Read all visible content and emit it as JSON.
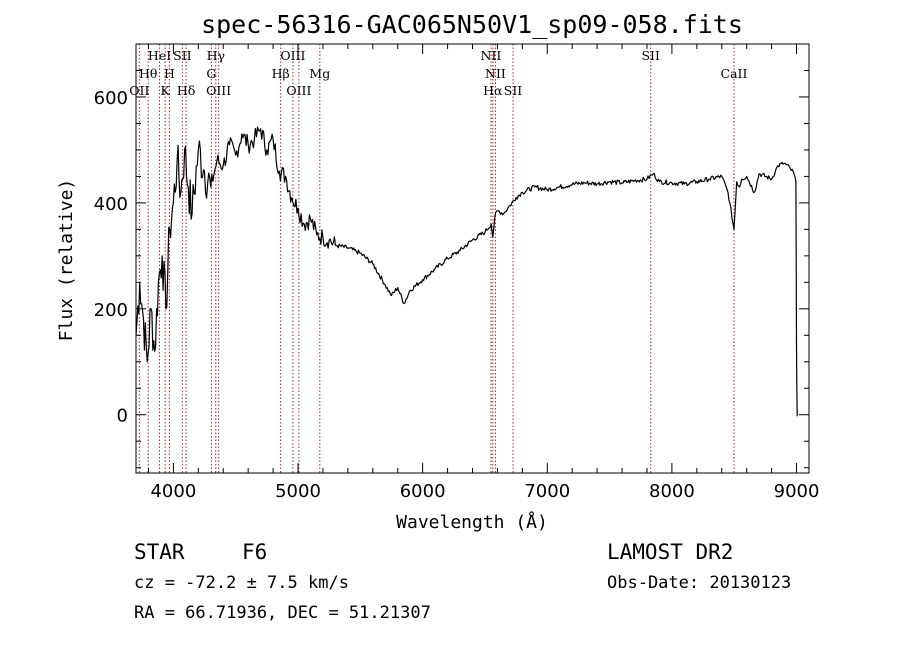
{
  "chart_data": {
    "type": "line",
    "title": "spec-56316-GAC065N50V1_sp09-058.fits",
    "xlabel": "Wavelength (Å)",
    "ylabel": "Flux (relative)",
    "xlim": [
      3700,
      9100
    ],
    "ylim": [
      -110,
      700
    ],
    "xticks": [
      4000,
      5000,
      6000,
      7000,
      8000,
      9000
    ],
    "yticks": [
      0,
      200,
      400,
      600
    ],
    "series": [
      {
        "name": "spectrum",
        "x": [
          3700,
          3730,
          3760,
          3790,
          3820,
          3850,
          3880,
          3910,
          3940,
          3970,
          4000,
          4030,
          4060,
          4090,
          4120,
          4150,
          4200,
          4250,
          4300,
          4350,
          4400,
          4450,
          4500,
          4550,
          4600,
          4650,
          4700,
          4750,
          4800,
          4850,
          4900,
          4950,
          5000,
          5050,
          5100,
          5150,
          5200,
          5250,
          5300,
          5400,
          5500,
          5600,
          5700,
          5750,
          5800,
          5850,
          5900,
          6000,
          6100,
          6200,
          6300,
          6400,
          6500,
          6550,
          6563,
          6580,
          6600,
          6650,
          6700,
          6750,
          6800,
          6900,
          7000,
          7100,
          7200,
          7300,
          7400,
          7500,
          7600,
          7700,
          7800,
          7850,
          7900,
          8000,
          8100,
          8200,
          8300,
          8400,
          8450,
          8498,
          8520,
          8542,
          8560,
          8600,
          8662,
          8700,
          8800,
          8850,
          8900,
          8950,
          8980,
          8995,
          9000,
          9005
        ],
        "y": [
          150,
          250,
          180,
          100,
          200,
          120,
          250,
          300,
          200,
          350,
          400,
          480,
          420,
          500,
          430,
          380,
          500,
          460,
          430,
          480,
          470,
          510,
          490,
          530,
          510,
          520,
          540,
          500,
          520,
          460,
          450,
          410,
          390,
          360,
          370,
          340,
          335,
          330,
          320,
          315,
          305,
          285,
          245,
          225,
          240,
          210,
          235,
          255,
          275,
          295,
          310,
          330,
          345,
          360,
          335,
          375,
          385,
          380,
          395,
          410,
          420,
          430,
          425,
          430,
          435,
          438,
          436,
          440,
          438,
          442,
          445,
          455,
          440,
          438,
          436,
          440,
          445,
          450,
          420,
          350,
          440,
          430,
          445,
          450,
          420,
          455,
          445,
          470,
          475,
          465,
          455,
          440,
          130,
          -3
        ]
      }
    ],
    "spectral_lines": [
      {
        "label": "Hθ",
        "wave": 3798,
        "row": 2
      },
      {
        "label": "OII",
        "wave": 3727,
        "row": 4
      },
      {
        "label": "HeI",
        "wave": 3889,
        "row": 0
      },
      {
        "label": "SII",
        "wave": 4072,
        "row": 0
      },
      {
        "label": "H",
        "wave": 3968,
        "row": 2
      },
      {
        "label": "K",
        "wave": 3934,
        "row": 4
      },
      {
        "label": "Hδ",
        "wave": 4102,
        "row": 4
      },
      {
        "label": "Hγ",
        "wave": 4340,
        "row": 0
      },
      {
        "label": "G",
        "wave": 4305,
        "row": 2
      },
      {
        "label": "OIII",
        "wave": 4363,
        "row": 4
      },
      {
        "label": "OIII",
        "wave": 4959,
        "row": 0
      },
      {
        "label": "Hβ",
        "wave": 4861,
        "row": 2
      },
      {
        "label": "Mg",
        "wave": 5175,
        "row": 2
      },
      {
        "label": "OIII",
        "wave": 5007,
        "row": 4
      },
      {
        "label": "NII",
        "wave": 6548,
        "row": 0
      },
      {
        "label": "NII",
        "wave": 6584,
        "row": 2
      },
      {
        "label": "Hα",
        "wave": 6563,
        "row": 4
      },
      {
        "label": "SII",
        "wave": 6725,
        "row": 4
      },
      {
        "label": "SII",
        "wave": 7830,
        "row": 0
      },
      {
        "label": "CaII",
        "wave": 8498,
        "row": 2
      }
    ]
  },
  "info": {
    "class": "STAR",
    "subclass": "F6",
    "redshift": "cz = -72.2 ± 7.5 km/s",
    "coords": "RA =  66.71936, DEC =  51.21307",
    "survey": "LAMOST DR2",
    "obs_date": "Obs-Date: 20130123"
  },
  "colors": {
    "spectrum": "#000000",
    "line_marker": "#a02828",
    "axis": "#000000"
  }
}
